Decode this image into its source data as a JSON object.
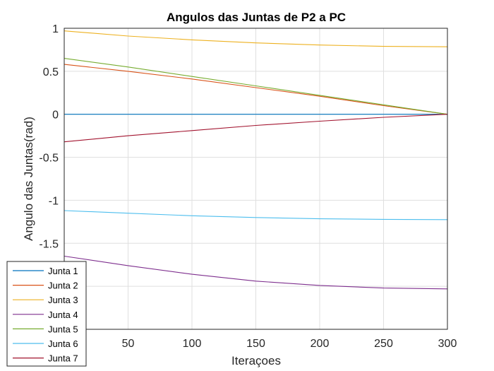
{
  "chart_data": {
    "type": "line",
    "title": "Angulos das Juntas de P2 a PC",
    "xlabel": "Iteraçoes",
    "ylabel": "Angulo das Juntas(rad)",
    "xlim": [
      0,
      300
    ],
    "ylim": [
      -2.5,
      1
    ],
    "xticks": [
      50,
      100,
      150,
      200,
      250,
      300
    ],
    "xtick_labels": [
      "50",
      "100",
      "150",
      "200",
      "250",
      "300"
    ],
    "yticks": [
      -1.5,
      -1,
      -0.5,
      0,
      0.5,
      1
    ],
    "ytick_labels": [
      "-1.5",
      "-1",
      "-0.5",
      "0",
      "0.5",
      "1"
    ],
    "grid": true,
    "legend_position": "bottom-left",
    "x": [
      0,
      50,
      100,
      150,
      200,
      250,
      300
    ],
    "series": [
      {
        "name": "Junta 1",
        "color": "#0072BD",
        "values": [
          0,
          0,
          0,
          0,
          0,
          0,
          0
        ]
      },
      {
        "name": "Junta 2",
        "color": "#D95319",
        "values": [
          0.58,
          0.5,
          0.41,
          0.31,
          0.21,
          0.1,
          0
        ]
      },
      {
        "name": "Junta 3",
        "color": "#EDB120",
        "values": [
          0.97,
          0.91,
          0.865,
          0.83,
          0.805,
          0.79,
          0.785
        ]
      },
      {
        "name": "Junta 4",
        "color": "#7E2F8E",
        "values": [
          -1.65,
          -1.76,
          -1.86,
          -1.94,
          -1.99,
          -2.02,
          -2.03
        ]
      },
      {
        "name": "Junta 5",
        "color": "#77AC30",
        "values": [
          0.65,
          0.55,
          0.44,
          0.33,
          0.22,
          0.11,
          0
        ]
      },
      {
        "name": "Junta 6",
        "color": "#4DBEEE",
        "values": [
          -1.12,
          -1.15,
          -1.18,
          -1.2,
          -1.215,
          -1.222,
          -1.225
        ]
      },
      {
        "name": "Junta 7",
        "color": "#A2142F",
        "values": [
          -0.32,
          -0.25,
          -0.19,
          -0.13,
          -0.08,
          -0.035,
          0
        ]
      }
    ]
  }
}
